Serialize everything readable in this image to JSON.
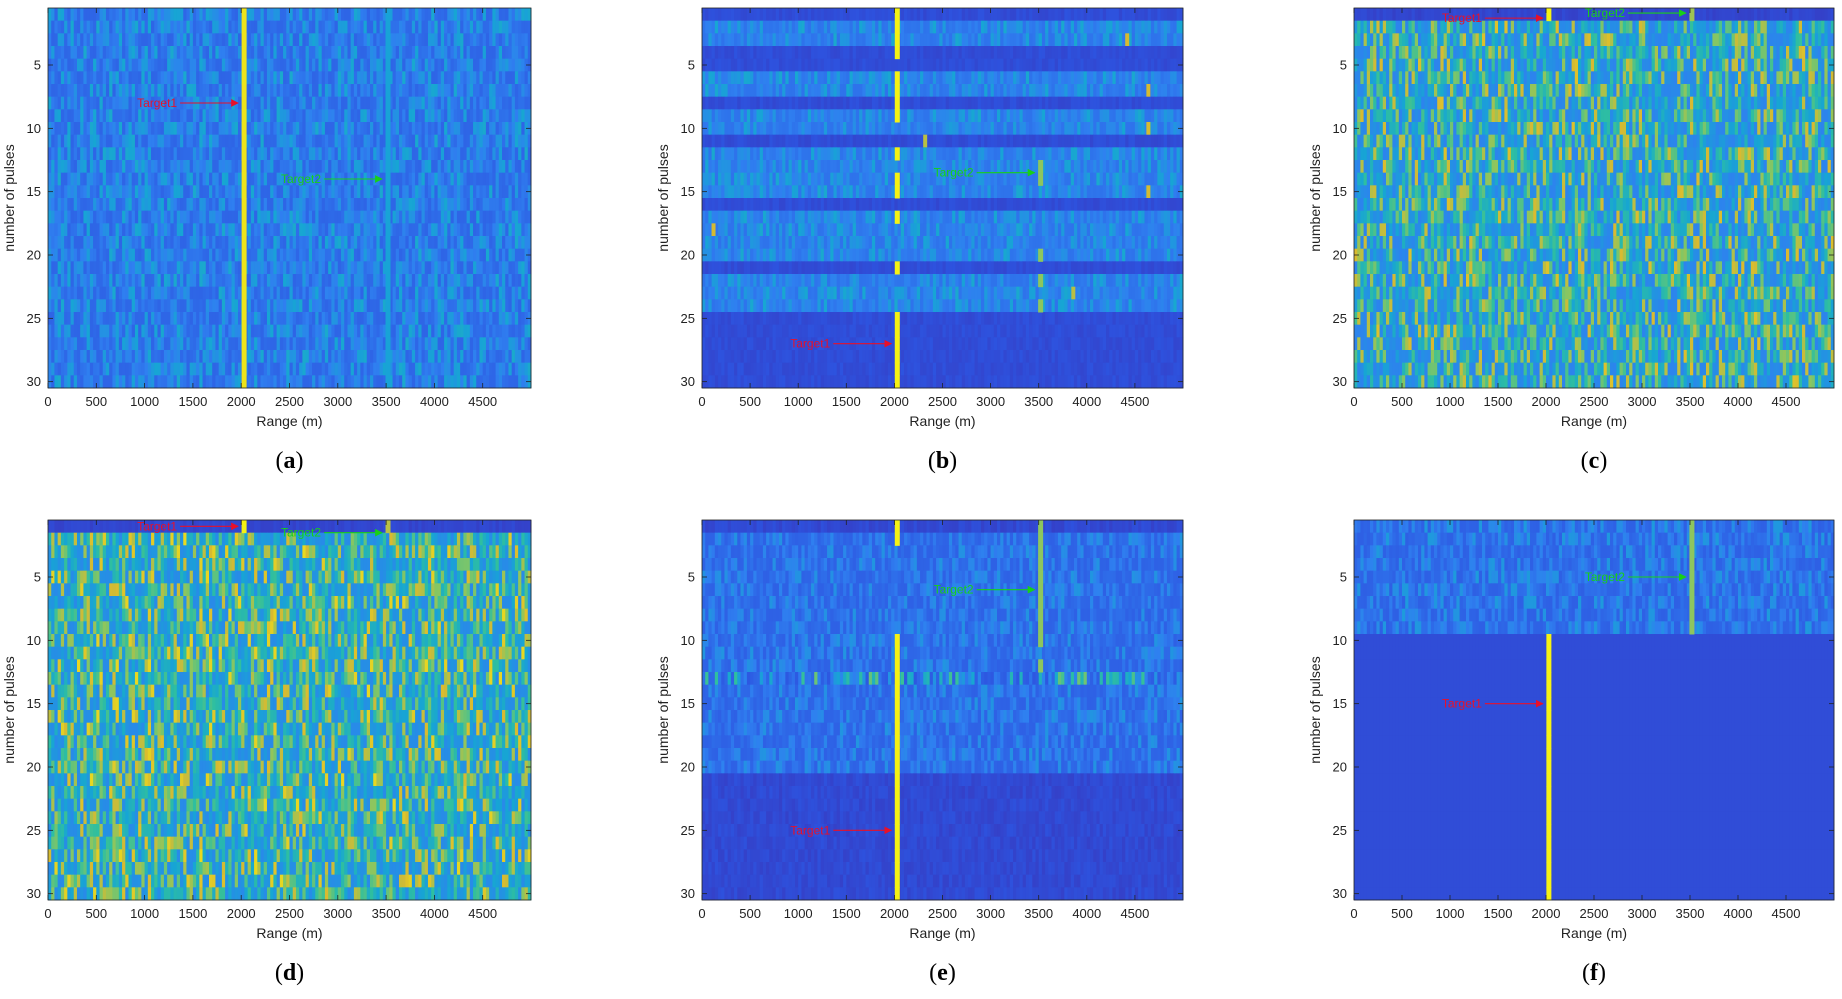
{
  "figure": {
    "title": ""
  },
  "palette": {
    "background": "#2c28c4",
    "colormap": [
      "#3e26a8",
      "#2d54e0",
      "#2f80f0",
      "#17a5d4",
      "#2fbf9f",
      "#8ac660",
      "#d9ba30",
      "#f9fb0e"
    ],
    "target1_color": "#e8102a",
    "target2_color": "#18d018",
    "axis_color": "#222222"
  },
  "chart_data": [
    {
      "type": "heatmap",
      "panel": "a",
      "title": "",
      "xlabel": "Range (m)",
      "ylabel": "number of pulses",
      "xlim": [
        0,
        5000
      ],
      "ylim": [
        30,
        0.5
      ],
      "x_ticks": [
        0,
        500,
        1000,
        1500,
        2000,
        2500,
        3000,
        3500,
        4000,
        4500
      ],
      "y_ticks": [
        5,
        10,
        15,
        20,
        25,
        30
      ],
      "n_pulses": 30,
      "pattern": {
        "base": 0.22,
        "active_rows": "all",
        "active_base": 0.22,
        "active_noise": 0.22,
        "quiet_noise": 0.05
      },
      "targets": [
        {
          "name": "Target1",
          "range_m": 2030,
          "pulses": "1-30",
          "intensity": 0.95
        },
        {
          "name": "Target2",
          "range_m": 3520,
          "pulses": "1-30",
          "intensity": 0.42
        }
      ],
      "annotations": [
        {
          "text": "Target1",
          "color": "red",
          "at_range_m": 2030,
          "at_pulse": 8
        },
        {
          "text": "Target2",
          "color": "green",
          "at_range_m": 3520,
          "at_pulse": 14
        }
      ]
    },
    {
      "type": "heatmap",
      "panel": "b",
      "title": "",
      "xlabel": "Range (m)",
      "ylabel": "number of pulses",
      "xlim": [
        0,
        5000
      ],
      "ylim": [
        30,
        0.5
      ],
      "x_ticks": [
        0,
        500,
        1000,
        1500,
        2000,
        2500,
        3000,
        3500,
        4000,
        4500
      ],
      "y_ticks": [
        5,
        10,
        15,
        20,
        25,
        30
      ],
      "n_pulses": 30,
      "pattern": {
        "base": 0.12,
        "active_rows": [
          2,
          3,
          6,
          7,
          9,
          10,
          12,
          13,
          14,
          15,
          17,
          18,
          19,
          20,
          22,
          23,
          24
        ],
        "active_base": 0.26,
        "active_noise": 0.18,
        "quiet_noise": 0.04
      },
      "targets": [
        {
          "name": "Target1",
          "range_m": 2030,
          "pulses": "1-4,6-9,12,14-15,17,21,25-30",
          "intensity": 0.98
        },
        {
          "name": "Target2",
          "range_m": 3520,
          "pulses": "13-14,20,22,24",
          "intensity": 0.72
        }
      ],
      "spots": [
        {
          "range_m": 4420,
          "pulse": 3,
          "intensity": 0.85
        },
        {
          "range_m": 4640,
          "pulse": 7,
          "intensity": 0.85
        },
        {
          "range_m": 4640,
          "pulse": 10,
          "intensity": 0.85
        },
        {
          "range_m": 4640,
          "pulse": 15,
          "intensity": 0.85
        },
        {
          "range_m": 2320,
          "pulse": 11,
          "intensity": 0.8
        },
        {
          "range_m": 120,
          "pulse": 18,
          "intensity": 0.85
        },
        {
          "range_m": 3860,
          "pulse": 23,
          "intensity": 0.8
        }
      ],
      "annotations": [
        {
          "text": "Target2",
          "color": "green",
          "at_range_m": 3520,
          "at_pulse": 13.5
        },
        {
          "text": "Target1",
          "color": "red",
          "at_range_m": 2030,
          "at_pulse": 27
        }
      ]
    },
    {
      "type": "heatmap",
      "panel": "c",
      "title": "",
      "xlabel": "Range (m)",
      "ylabel": "number of pulses",
      "xlim": [
        0,
        5000
      ],
      "ylim": [
        30,
        0.5
      ],
      "x_ticks": [
        0,
        500,
        1000,
        1500,
        2000,
        2500,
        3000,
        3500,
        4000,
        4500
      ],
      "y_ticks": [
        5,
        10,
        15,
        20,
        25,
        30
      ],
      "n_pulses": 30,
      "pattern": {
        "base": 0.1,
        "active_rows": "2-30",
        "active_base": 0.35,
        "active_noise": 0.5,
        "quiet_noise": 0.04
      },
      "targets": [
        {
          "name": "Target1",
          "range_m": 2030,
          "pulses": "1",
          "intensity": 0.98
        },
        {
          "name": "Target2",
          "range_m": 3520,
          "pulses": "1",
          "intensity": 0.75
        }
      ],
      "annotations": [
        {
          "text": "Target1",
          "color": "red",
          "at_range_m": 2030,
          "at_pulse": 1.3
        },
        {
          "text": "Target2",
          "color": "green",
          "at_range_m": 3520,
          "at_pulse": 0.9
        }
      ]
    },
    {
      "type": "heatmap",
      "panel": "d",
      "title": "",
      "xlabel": "Range (m)",
      "ylabel": "number of pulses",
      "xlim": [
        0,
        5000
      ],
      "ylim": [
        30,
        0.5
      ],
      "x_ticks": [
        0,
        500,
        1000,
        1500,
        2000,
        2500,
        3000,
        3500,
        4000,
        4500
      ],
      "y_ticks": [
        5,
        10,
        15,
        20,
        25,
        30
      ],
      "n_pulses": 30,
      "pattern": {
        "base": 0.1,
        "active_rows": "2-30",
        "active_base": 0.38,
        "active_noise": 0.52,
        "quiet_noise": 0.04
      },
      "targets": [
        {
          "name": "Target1",
          "range_m": 2030,
          "pulses": "1",
          "intensity": 0.98
        },
        {
          "name": "Target2",
          "range_m": 3520,
          "pulses": "1",
          "intensity": 0.8
        }
      ],
      "annotations": [
        {
          "text": "Target1",
          "color": "red",
          "at_range_m": 2030,
          "at_pulse": 1
        },
        {
          "text": "Target2",
          "color": "green",
          "at_range_m": 3520,
          "at_pulse": 1.5
        }
      ]
    },
    {
      "type": "heatmap",
      "panel": "e",
      "title": "",
      "xlabel": "Range (m)",
      "ylabel": "number of pulses",
      "xlim": [
        0,
        5000
      ],
      "ylim": [
        30,
        0.5
      ],
      "x_ticks": [
        0,
        500,
        1000,
        1500,
        2000,
        2500,
        3000,
        3500,
        4000,
        4500
      ],
      "y_ticks": [
        5,
        10,
        15,
        20,
        25,
        30
      ],
      "n_pulses": 30,
      "pattern": {
        "base": 0.11,
        "active_rows": "2-20",
        "active_base": 0.2,
        "active_noise": 0.16,
        "quiet_noise": 0.05,
        "strong_rows": [
          13
        ],
        "strong_noise": 0.45
      },
      "targets": [
        {
          "name": "Target1",
          "range_m": 2030,
          "pulses": "1-2,10-30",
          "intensity": 0.98
        },
        {
          "name": "Target2",
          "range_m": 3520,
          "pulses": "1-10,12",
          "intensity": 0.72
        }
      ],
      "annotations": [
        {
          "text": "Target2",
          "color": "green",
          "at_range_m": 3520,
          "at_pulse": 6
        },
        {
          "text": "Target1",
          "color": "red",
          "at_range_m": 2030,
          "at_pulse": 25
        }
      ]
    },
    {
      "type": "heatmap",
      "panel": "f",
      "title": "",
      "xlabel": "Range (m)",
      "ylabel": "number of pulses",
      "xlim": [
        0,
        5000
      ],
      "ylim": [
        30,
        0.5
      ],
      "x_ticks": [
        0,
        500,
        1000,
        1500,
        2000,
        2500,
        3000,
        3500,
        4000,
        4500
      ],
      "y_ticks": [
        5,
        10,
        15,
        20,
        25,
        30
      ],
      "n_pulses": 30,
      "pattern": {
        "base": 0.12,
        "active_rows": "1-9",
        "active_base": 0.2,
        "active_noise": 0.18,
        "quiet_noise": 0.0
      },
      "targets": [
        {
          "name": "Target1",
          "range_m": 2030,
          "pulses": "10-30",
          "intensity": 0.98
        },
        {
          "name": "Target2",
          "range_m": 3520,
          "pulses": "1-9",
          "intensity": 0.72
        }
      ],
      "annotations": [
        {
          "text": "Target2",
          "color": "green",
          "at_range_m": 3520,
          "at_pulse": 5
        },
        {
          "text": "Target1",
          "color": "red",
          "at_range_m": 2030,
          "at_pulse": 15
        }
      ]
    }
  ]
}
